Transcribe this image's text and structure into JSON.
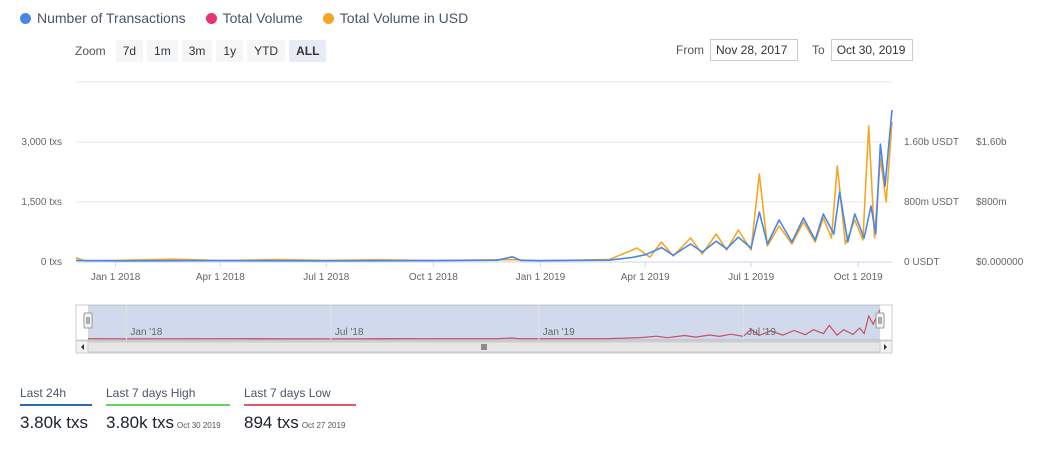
{
  "legend": [
    {
      "label": "Number of Transactions",
      "color": "#4a86e8"
    },
    {
      "label": "Total Volume",
      "color": "#e8336f"
    },
    {
      "label": "Total Volume in USD",
      "color": "#f5a623"
    }
  ],
  "zoom": {
    "label": "Zoom",
    "buttons": [
      "7d",
      "1m",
      "3m",
      "1y",
      "YTD",
      "ALL"
    ],
    "active": "ALL"
  },
  "range": {
    "from_label": "From",
    "from_value": "Nov 28, 2017",
    "to_label": "To",
    "to_value": "Oct 30, 2019"
  },
  "chart_data": {
    "type": "line",
    "x_range": [
      "2017-11-28",
      "2019-10-30"
    ],
    "x_ticks": [
      "Jan 1 2018",
      "Apr 1 2018",
      "Jul 1 2018",
      "Oct 1 2018",
      "Jan 1 2019",
      "Apr 1 2019",
      "Jul 1 2019",
      "Oct 1 2019"
    ],
    "y_left": {
      "ticks": [
        "3,000 txs",
        "1,500 txs",
        "0 txs"
      ],
      "values": [
        3000,
        1500,
        0
      ],
      "range": [
        0,
        4500
      ]
    },
    "y_right1": {
      "ticks": [
        "1.60b USDT",
        "800m USDT",
        "0 USDT"
      ]
    },
    "y_right2": {
      "ticks": [
        "$1.60b",
        "$800m",
        "$0.000000"
      ]
    },
    "series": [
      {
        "name": "Number of Transactions",
        "color": "#4a86e8",
        "points": [
          [
            "2017-11-28",
            40
          ],
          [
            "2018-01-01",
            30
          ],
          [
            "2018-04-01",
            35
          ],
          [
            "2018-07-01",
            30
          ],
          [
            "2018-10-01",
            35
          ],
          [
            "2018-11-25",
            45
          ],
          [
            "2018-12-08",
            130
          ],
          [
            "2018-12-15",
            40
          ],
          [
            "2019-01-01",
            35
          ],
          [
            "2019-03-01",
            45
          ],
          [
            "2019-03-20",
            110
          ],
          [
            "2019-04-01",
            180
          ],
          [
            "2019-04-15",
            360
          ],
          [
            "2019-04-25",
            170
          ],
          [
            "2019-05-10",
            450
          ],
          [
            "2019-05-20",
            250
          ],
          [
            "2019-06-01",
            520
          ],
          [
            "2019-06-10",
            330
          ],
          [
            "2019-06-20",
            620
          ],
          [
            "2019-07-01",
            350
          ],
          [
            "2019-07-08",
            1250
          ],
          [
            "2019-07-15",
            450
          ],
          [
            "2019-07-25",
            1050
          ],
          [
            "2019-08-05",
            500
          ],
          [
            "2019-08-15",
            1100
          ],
          [
            "2019-08-25",
            550
          ],
          [
            "2019-09-01",
            1200
          ],
          [
            "2019-09-10",
            700
          ],
          [
            "2019-09-15",
            1750
          ],
          [
            "2019-09-22",
            500
          ],
          [
            "2019-09-28",
            1200
          ],
          [
            "2019-10-06",
            600
          ],
          [
            "2019-10-12",
            1400
          ],
          [
            "2019-10-16",
            700
          ],
          [
            "2019-10-20",
            2950
          ],
          [
            "2019-10-24",
            1900
          ],
          [
            "2019-10-30",
            3800
          ]
        ]
      },
      {
        "name": "Total Volume in USD",
        "color": "#f5a623",
        "points": [
          [
            "2017-11-28",
            110
          ],
          [
            "2017-12-05",
            30
          ],
          [
            "2018-01-01",
            40
          ],
          [
            "2018-02-20",
            70
          ],
          [
            "2018-04-01",
            35
          ],
          [
            "2018-05-20",
            60
          ],
          [
            "2018-07-01",
            40
          ],
          [
            "2018-08-15",
            55
          ],
          [
            "2018-10-01",
            35
          ],
          [
            "2018-12-08",
            60
          ],
          [
            "2019-01-01",
            30
          ],
          [
            "2019-03-01",
            60
          ],
          [
            "2019-03-25",
            350
          ],
          [
            "2019-04-05",
            120
          ],
          [
            "2019-04-15",
            500
          ],
          [
            "2019-04-25",
            150
          ],
          [
            "2019-05-10",
            600
          ],
          [
            "2019-05-20",
            200
          ],
          [
            "2019-06-01",
            700
          ],
          [
            "2019-06-10",
            300
          ],
          [
            "2019-06-20",
            800
          ],
          [
            "2019-07-01",
            300
          ],
          [
            "2019-07-08",
            2200
          ],
          [
            "2019-07-15",
            400
          ],
          [
            "2019-07-25",
            900
          ],
          [
            "2019-08-05",
            450
          ],
          [
            "2019-08-15",
            1000
          ],
          [
            "2019-08-25",
            500
          ],
          [
            "2019-09-01",
            1100
          ],
          [
            "2019-09-08",
            600
          ],
          [
            "2019-09-13",
            2400
          ],
          [
            "2019-09-20",
            450
          ],
          [
            "2019-09-28",
            1050
          ],
          [
            "2019-10-05",
            550
          ],
          [
            "2019-10-10",
            3400
          ],
          [
            "2019-10-15",
            600
          ],
          [
            "2019-10-20",
            2600
          ],
          [
            "2019-10-25",
            1500
          ],
          [
            "2019-10-30",
            3500
          ]
        ]
      }
    ],
    "navigator": {
      "x_ticks": [
        "Jan '18",
        "Jul '18",
        "Jan '19",
        "Jul '19"
      ]
    }
  },
  "stats": [
    {
      "label": "Last 24h",
      "value": "3.80k txs",
      "date": "",
      "color": "#2b6cb0"
    },
    {
      "label": "Last 7 days High",
      "value": "3.80k txs",
      "date": "Oct 30 2019",
      "color": "#68d35c"
    },
    {
      "label": "Last 7 days Low",
      "value": "894 txs",
      "date": "Oct 27 2019",
      "color": "#e05a6b"
    }
  ]
}
